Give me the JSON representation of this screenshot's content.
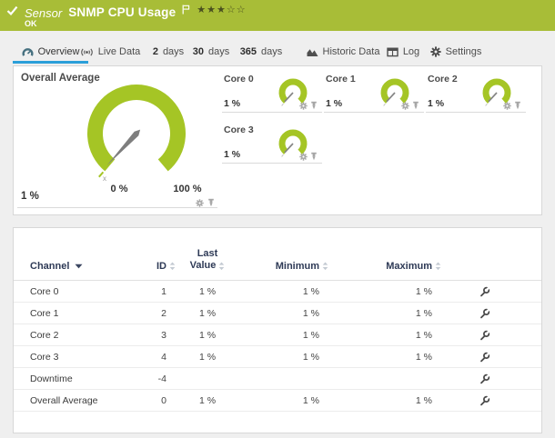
{
  "header": {
    "type_label": "Sensor",
    "title": "SNMP CPU Usage",
    "status": "OK",
    "priority_filled_stars": 3,
    "priority_total_stars": 5
  },
  "tabs": [
    {
      "label": "Overview",
      "icon": "gauge-icon",
      "active": true
    },
    {
      "label": "Live Data",
      "icon": "broadcast-icon",
      "active": false
    },
    {
      "number": "2",
      "label": "days",
      "active": false
    },
    {
      "number": "30",
      "label": "days",
      "active": false
    },
    {
      "number": "365",
      "label": "days",
      "active": false
    },
    {
      "label": "Historic Data",
      "icon": "area-chart-icon",
      "active": false
    },
    {
      "label": "Log",
      "icon": "table-icon",
      "active": false
    },
    {
      "label": "Settings",
      "icon": "gear-icon",
      "active": false
    }
  ],
  "overview": {
    "overall_gauge": {
      "title": "Overall Average",
      "value_label": "1 %",
      "value_percent": 1,
      "scale_min_label": "0 %",
      "scale_max_label": "100 %",
      "marker_label": "x"
    },
    "core_gauges": [
      {
        "title": "Core 0",
        "value_label": "1 %",
        "value_percent": 1
      },
      {
        "title": "Core 1",
        "value_label": "1 %",
        "value_percent": 1
      },
      {
        "title": "Core 2",
        "value_label": "1 %",
        "value_percent": 1
      },
      {
        "title": "Core 3",
        "value_label": "1 %",
        "value_percent": 1
      }
    ]
  },
  "table": {
    "headers": {
      "channel": "Channel",
      "id": "ID",
      "last_value_line1": "Last",
      "last_value_line2": "Value",
      "minimum": "Minimum",
      "maximum": "Maximum"
    },
    "rows": [
      {
        "channel": "Core 0",
        "id": "1",
        "last_value": "1 %",
        "minimum": "1 %",
        "maximum": "1 %"
      },
      {
        "channel": "Core 1",
        "id": "2",
        "last_value": "1 %",
        "minimum": "1 %",
        "maximum": "1 %"
      },
      {
        "channel": "Core 2",
        "id": "3",
        "last_value": "1 %",
        "minimum": "1 %",
        "maximum": "1 %"
      },
      {
        "channel": "Core 3",
        "id": "4",
        "last_value": "1 %",
        "minimum": "1 %",
        "maximum": "1 %"
      },
      {
        "channel": "Downtime",
        "id": "-4",
        "last_value": "",
        "minimum": "",
        "maximum": ""
      },
      {
        "channel": "Overall Average",
        "id": "0",
        "last_value": "1 %",
        "minimum": "1 %",
        "maximum": "1 %"
      }
    ]
  },
  "colors": {
    "status_ok_green": "#a8bd37",
    "gauge_green": "#a5c525",
    "needle_gray": "#7e7e7e",
    "active_tab_blue": "#2b9fd9",
    "table_header_text": "#2e3a56"
  }
}
